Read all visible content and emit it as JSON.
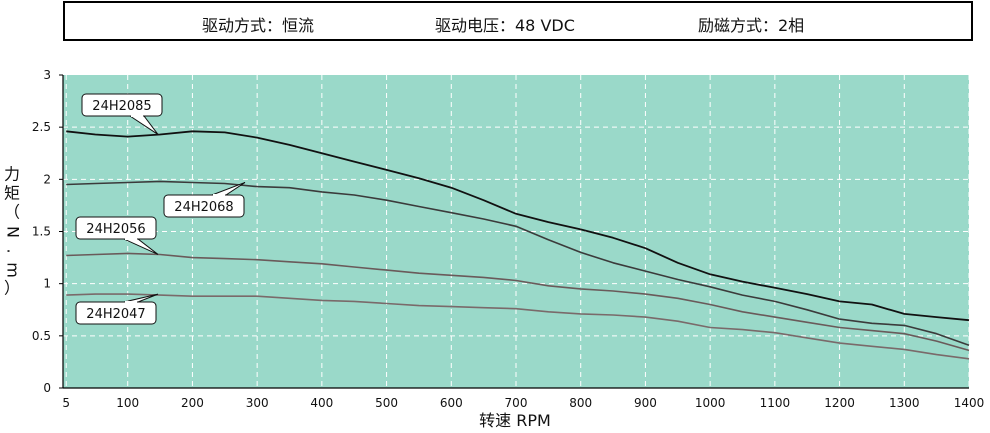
{
  "header": {
    "drive_method": "驱动方式：恒流",
    "drive_voltage": "驱动电压：48 VDC",
    "excitation": "励磁方式：2相"
  },
  "colors": {
    "plot_bg": "#9ad9c9",
    "grid": "#ffffff",
    "line_24H2085": "#111111",
    "line_24H2068": "#3b3b3b",
    "line_24H2056": "#6a5a5a",
    "line_24H2047": "#7a6a6a"
  },
  "chart_data": {
    "type": "line",
    "title": "",
    "xlabel": "转速 RPM",
    "ylabel": "力矩（N.m）",
    "xlim": [
      0,
      1400
    ],
    "ylim": [
      0,
      3
    ],
    "x_ticks": [
      5,
      100,
      200,
      300,
      400,
      500,
      600,
      700,
      800,
      900,
      1000,
      1100,
      1200,
      1300,
      1400
    ],
    "y_ticks": [
      0,
      0.5,
      1,
      1.5,
      2,
      2.5,
      3
    ],
    "grid": true,
    "series": [
      {
        "name": "24H2085",
        "x": [
          5,
          50,
          100,
          150,
          200,
          250,
          300,
          350,
          400,
          450,
          500,
          550,
          600,
          650,
          700,
          750,
          800,
          850,
          900,
          950,
          1000,
          1050,
          1100,
          1150,
          1200,
          1250,
          1300,
          1350,
          1400
        ],
        "y": [
          2.46,
          2.43,
          2.41,
          2.43,
          2.46,
          2.45,
          2.4,
          2.33,
          2.25,
          2.17,
          2.09,
          2.01,
          1.92,
          1.8,
          1.67,
          1.59,
          1.52,
          1.44,
          1.34,
          1.2,
          1.09,
          1.02,
          0.96,
          0.9,
          0.83,
          0.8,
          0.71,
          0.68,
          0.65
        ]
      },
      {
        "name": "24H2068",
        "x": [
          5,
          50,
          100,
          150,
          200,
          250,
          300,
          350,
          400,
          450,
          500,
          550,
          600,
          650,
          700,
          750,
          800,
          850,
          900,
          950,
          1000,
          1050,
          1100,
          1150,
          1200,
          1250,
          1300,
          1350,
          1400
        ],
        "y": [
          1.95,
          1.96,
          1.97,
          1.98,
          1.97,
          1.96,
          1.93,
          1.92,
          1.88,
          1.85,
          1.8,
          1.74,
          1.68,
          1.62,
          1.55,
          1.42,
          1.3,
          1.2,
          1.12,
          1.04,
          0.97,
          0.89,
          0.83,
          0.75,
          0.66,
          0.62,
          0.6,
          0.52,
          0.41
        ]
      },
      {
        "name": "24H2056",
        "x": [
          5,
          50,
          100,
          150,
          200,
          250,
          300,
          350,
          400,
          450,
          500,
          550,
          600,
          650,
          700,
          750,
          800,
          850,
          900,
          950,
          1000,
          1050,
          1100,
          1150,
          1200,
          1250,
          1300,
          1350,
          1400
        ],
        "y": [
          1.27,
          1.28,
          1.29,
          1.28,
          1.25,
          1.24,
          1.23,
          1.21,
          1.19,
          1.16,
          1.13,
          1.1,
          1.08,
          1.06,
          1.03,
          0.98,
          0.95,
          0.93,
          0.9,
          0.86,
          0.8,
          0.73,
          0.68,
          0.63,
          0.58,
          0.55,
          0.52,
          0.45,
          0.36
        ]
      },
      {
        "name": "24H2047",
        "x": [
          5,
          50,
          100,
          150,
          200,
          250,
          300,
          350,
          400,
          450,
          500,
          550,
          600,
          650,
          700,
          750,
          800,
          850,
          900,
          950,
          1000,
          1050,
          1100,
          1150,
          1200,
          1250,
          1300,
          1350,
          1400
        ],
        "y": [
          0.89,
          0.9,
          0.9,
          0.89,
          0.88,
          0.88,
          0.88,
          0.86,
          0.84,
          0.83,
          0.81,
          0.79,
          0.78,
          0.77,
          0.76,
          0.73,
          0.71,
          0.7,
          0.68,
          0.64,
          0.58,
          0.56,
          0.53,
          0.48,
          0.43,
          0.4,
          0.37,
          0.32,
          0.28
        ]
      }
    ]
  }
}
